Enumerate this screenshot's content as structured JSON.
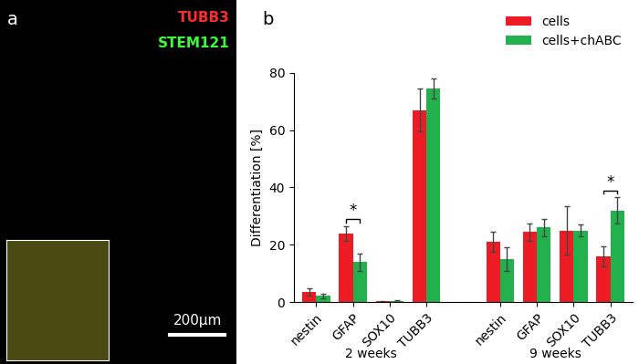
{
  "chart_data": {
    "type": "bar",
    "panel_label": "b",
    "y_label": "Differentiation [%]",
    "categories": [
      "nestin",
      "GFAP",
      "SOX10",
      "TUBB3",
      null,
      "nestin",
      "GFAP",
      "SOX10",
      "TUBB3"
    ],
    "groups": [
      "2 weeks",
      "9 weeks"
    ],
    "series": [
      {
        "name": "cells",
        "color": "#ed1c24",
        "values": [
          3.5,
          24,
          0.3,
          67,
          null,
          21,
          24.5,
          25,
          16
        ],
        "errors": [
          1.2,
          2.5,
          0.2,
          7.5,
          null,
          3.5,
          3,
          8.5,
          3.5
        ]
      },
      {
        "name": "cells+chABC",
        "color": "#22b14c",
        "values": [
          2.2,
          14,
          0.4,
          74.5,
          null,
          15,
          26,
          25,
          32
        ],
        "errors": [
          0.8,
          3,
          0.2,
          3.5,
          null,
          4,
          3,
          2,
          4.5
        ]
      }
    ],
    "significance": [
      {
        "group": "2 weeks",
        "category": "GFAP",
        "label": "*"
      },
      {
        "group": "9 weeks",
        "category": "TUBB3",
        "label": "*"
      }
    ],
    "ylim": [
      0,
      80
    ],
    "yticks": [
      0,
      20,
      40,
      60,
      80
    ],
    "grid": false,
    "legend": "upper right"
  },
  "image_panel": {
    "label": "a",
    "channels": [
      {
        "name": "TUBB3",
        "color": "#ff2a2a"
      },
      {
        "name": "STEM121",
        "color": "#33ff33"
      }
    ],
    "scale_bar": "200µm"
  }
}
